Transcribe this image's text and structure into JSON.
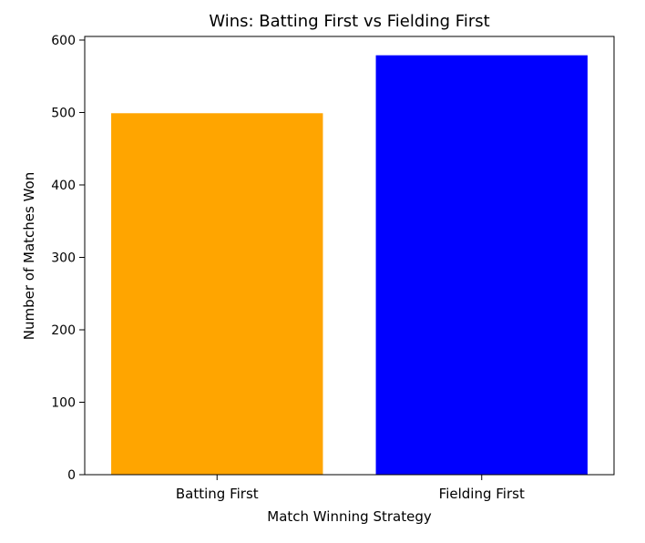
{
  "chart_data": {
    "type": "bar",
    "title": "Wins: Batting First vs Fielding First",
    "xlabel": "Match Winning Strategy",
    "ylabel": "Number of Matches Won",
    "categories": [
      "Batting First",
      "Fielding First"
    ],
    "values": [
      499,
      579
    ],
    "colors": [
      "#ffa500",
      "#0000ff"
    ],
    "ylim": [
      0,
      605
    ],
    "yticks": [
      0,
      100,
      200,
      300,
      400,
      500,
      600
    ],
    "grid": false,
    "legend": "none"
  }
}
